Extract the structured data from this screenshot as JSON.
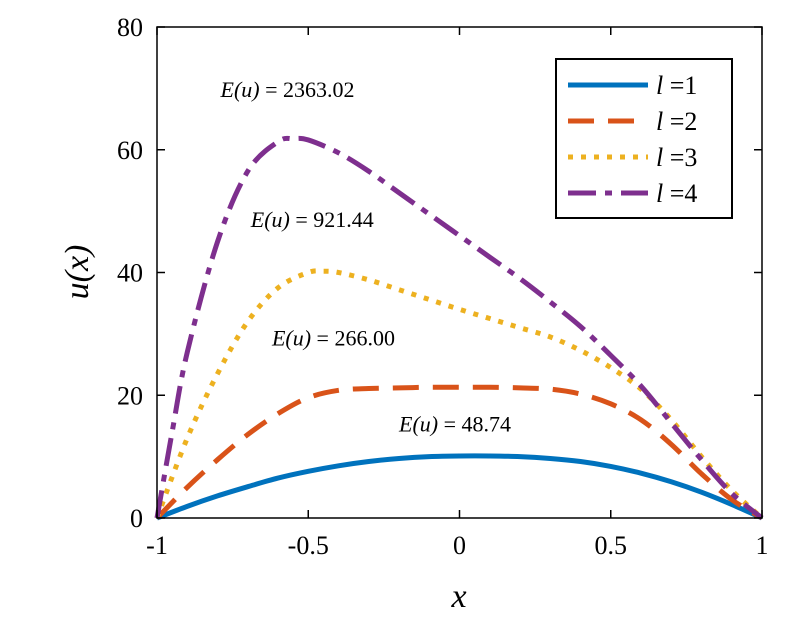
{
  "chart_data": {
    "type": "line",
    "xlabel": "x",
    "ylabel": "u(x)",
    "xlim": [
      -1,
      1
    ],
    "ylim": [
      0,
      80
    ],
    "xticks": [
      -1,
      -0.5,
      0,
      0.5,
      1
    ],
    "xtick_labels": [
      "-1",
      "-0.5",
      "0",
      "0.5",
      "1"
    ],
    "yticks": [
      0,
      20,
      40,
      60,
      80
    ],
    "ytick_labels": [
      "0",
      "20",
      "40",
      "60",
      "80"
    ],
    "grid": false,
    "legend_position": "top-right",
    "series": [
      {
        "name": "l =1",
        "legend_var": "l",
        "legend_eq": " =1",
        "color": "#0072BD",
        "style": "solid",
        "x": [
          -1,
          -0.9,
          -0.8,
          -0.7,
          -0.6,
          -0.5,
          -0.4,
          -0.3,
          -0.2,
          -0.1,
          0,
          0.1,
          0.2,
          0.3,
          0.4,
          0.5,
          0.6,
          0.7,
          0.8,
          0.9,
          1
        ],
        "y": [
          0,
          1.9,
          3.6,
          5.1,
          6.5,
          7.6,
          8.5,
          9.2,
          9.7,
          10.0,
          10.1,
          10.1,
          10.0,
          9.7,
          9.2,
          8.4,
          7.3,
          5.9,
          4.2,
          2.2,
          0
        ]
      },
      {
        "name": "l =2",
        "legend_var": "l",
        "legend_eq": " =2",
        "color": "#D95319",
        "style": "dashed",
        "x": [
          -1,
          -0.9,
          -0.8,
          -0.7,
          -0.6,
          -0.5,
          -0.4,
          -0.3,
          -0.2,
          -0.1,
          0,
          0.1,
          0.2,
          0.3,
          0.4,
          0.5,
          0.6,
          0.7,
          0.8,
          0.9,
          1
        ],
        "y": [
          0,
          5.0,
          9.5,
          13.6,
          17.0,
          19.6,
          20.8,
          21.1,
          21.2,
          21.3,
          21.3,
          21.3,
          21.2,
          21.0,
          20.2,
          18.6,
          16.0,
          12.0,
          7.2,
          3.0,
          0
        ]
      },
      {
        "name": "l =3",
        "legend_var": "l",
        "legend_eq": " =3",
        "color": "#EDB120",
        "style": "dotted",
        "x": [
          -1,
          -0.9,
          -0.8,
          -0.7,
          -0.6,
          -0.5,
          -0.45,
          -0.4,
          -0.3,
          -0.2,
          -0.1,
          0,
          0.1,
          0.2,
          0.3,
          0.4,
          0.5,
          0.6,
          0.7,
          0.8,
          0.9,
          1
        ],
        "y": [
          0,
          13.0,
          23.5,
          32.0,
          37.5,
          40.0,
          40.2,
          40.0,
          38.8,
          37.2,
          35.6,
          34.0,
          32.5,
          31.0,
          29.5,
          27.3,
          24.5,
          21.0,
          16.0,
          10.0,
          4.5,
          0
        ]
      },
      {
        "name": "l =4",
        "legend_var": "l",
        "legend_eq": " =4",
        "color": "#7E2F8E",
        "style": "dashdot",
        "x": [
          -1,
          -0.95,
          -0.9,
          -0.8,
          -0.7,
          -0.6,
          -0.55,
          -0.5,
          -0.4,
          -0.3,
          -0.2,
          -0.1,
          0,
          0.1,
          0.2,
          0.3,
          0.4,
          0.5,
          0.6,
          0.7,
          0.8,
          0.9,
          1
        ],
        "y": [
          0,
          14.0,
          27.0,
          45.0,
          56.5,
          61.3,
          61.8,
          61.6,
          59.5,
          56.5,
          53.0,
          49.5,
          46.0,
          42.5,
          39.0,
          35.2,
          31.2,
          26.5,
          21.5,
          15.5,
          9.5,
          4.0,
          0
        ]
      }
    ],
    "annotations": [
      {
        "var": "E(u)",
        "eq": " = 2363.02",
        "x": -0.79,
        "y": 68.6
      },
      {
        "var": "E(u)",
        "eq": " = 921.44",
        "x": -0.69,
        "y": 47.4
      },
      {
        "var": "E(u)",
        "eq": " = 266.00",
        "x": -0.62,
        "y": 28.1
      },
      {
        "var": "E(u)",
        "eq": " = 48.74",
        "x": -0.2,
        "y": 14.1
      }
    ]
  }
}
